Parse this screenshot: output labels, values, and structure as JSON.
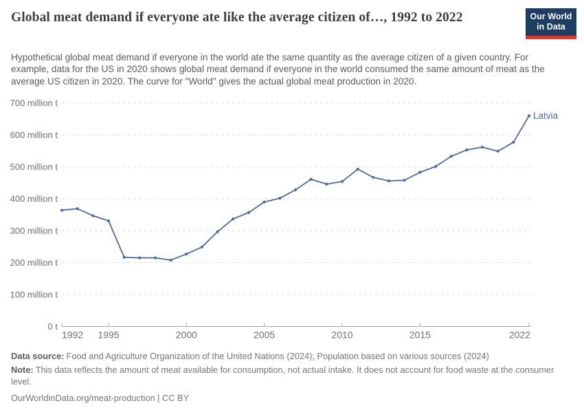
{
  "header": {
    "title": "Global meat demand if everyone ate like the average citizen of…, 1992 to 2022",
    "subtitle": "Hypothetical global meat demand if everyone in the world ate the same quantity as the average citizen of a given country. For example, data for the US in 2020 shows global meat demand if everyone in the world consumed the same amount of meat as the average US citizen in 2020. The curve for \"World\" gives the actual global meat production in 2020.",
    "logo": {
      "line1": "Our World",
      "line2": "in Data",
      "bg_color": "#1d3d63",
      "accent_color": "#dc3a2e"
    }
  },
  "chart_data": {
    "type": "line",
    "title": "Global meat demand if everyone ate like the average citizen of…, 1992 to 2022",
    "unit": "million t",
    "xlim": [
      1992,
      2022
    ],
    "ylim": [
      0,
      700
    ],
    "grid": "horizontal-dashed",
    "legend_position": "end-of-line-label",
    "x": [
      1992,
      1993,
      1994,
      1995,
      1996,
      1997,
      1998,
      1999,
      2000,
      2001,
      2002,
      2003,
      2004,
      2005,
      2006,
      2007,
      2008,
      2009,
      2010,
      2011,
      2012,
      2013,
      2014,
      2015,
      2016,
      2017,
      2018,
      2019,
      2020,
      2021,
      2022
    ],
    "series": [
      {
        "name": "Latvia",
        "color": "#4C6A9C",
        "values": [
          364,
          369,
          347,
          331,
          217,
          215,
          215,
          208,
          227,
          249,
          297,
          337,
          357,
          390,
          402,
          428,
          461,
          446,
          454,
          493,
          467,
          456,
          458,
          483,
          501,
          533,
          553,
          562,
          549,
          577,
          660
        ]
      }
    ],
    "y_tick_values": [
      0,
      100,
      200,
      300,
      400,
      500,
      600,
      700
    ],
    "y_tick_labels": [
      "0 t",
      "100 million t",
      "200 million t",
      "300 million t",
      "400 million t",
      "500 million t",
      "600 million t",
      "700 million t"
    ],
    "x_tick_values": [
      1992,
      1995,
      2000,
      2005,
      2010,
      2015,
      2022
    ],
    "x_tick_labels": [
      "1992",
      "1995",
      "2000",
      "2005",
      "2010",
      "2015",
      "2022"
    ],
    "colors": {
      "gridline": "#dedede",
      "axis": "#a3a3a3",
      "tick_text": "#6e6e6e"
    }
  },
  "footer": {
    "data_source_label": "Data source:",
    "data_source_text": "Food and Agriculture Organization of the United Nations (2024); Population based on various sources (2024)",
    "note_label": "Note:",
    "note_text": "This data reflects the amount of meat available for consumption, not actual intake. It does not account for food waste at the consumer level.",
    "citation": "OurWorldinData.org/meat-production | CC BY"
  }
}
